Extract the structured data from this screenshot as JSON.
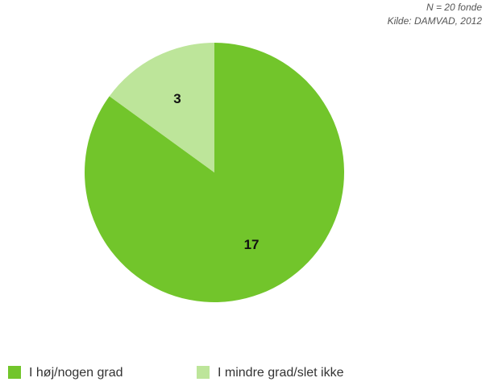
{
  "chart_data": {
    "type": "pie",
    "annotations": [
      "N = 20 fonde",
      "Kilde: DAMVAD, 2012"
    ],
    "categories": [
      "I høj/nogen grad",
      "I mindre grad/slet ikke"
    ],
    "values": [
      17,
      3
    ],
    "colors": [
      "#72c52b",
      "#bde59a"
    ]
  }
}
